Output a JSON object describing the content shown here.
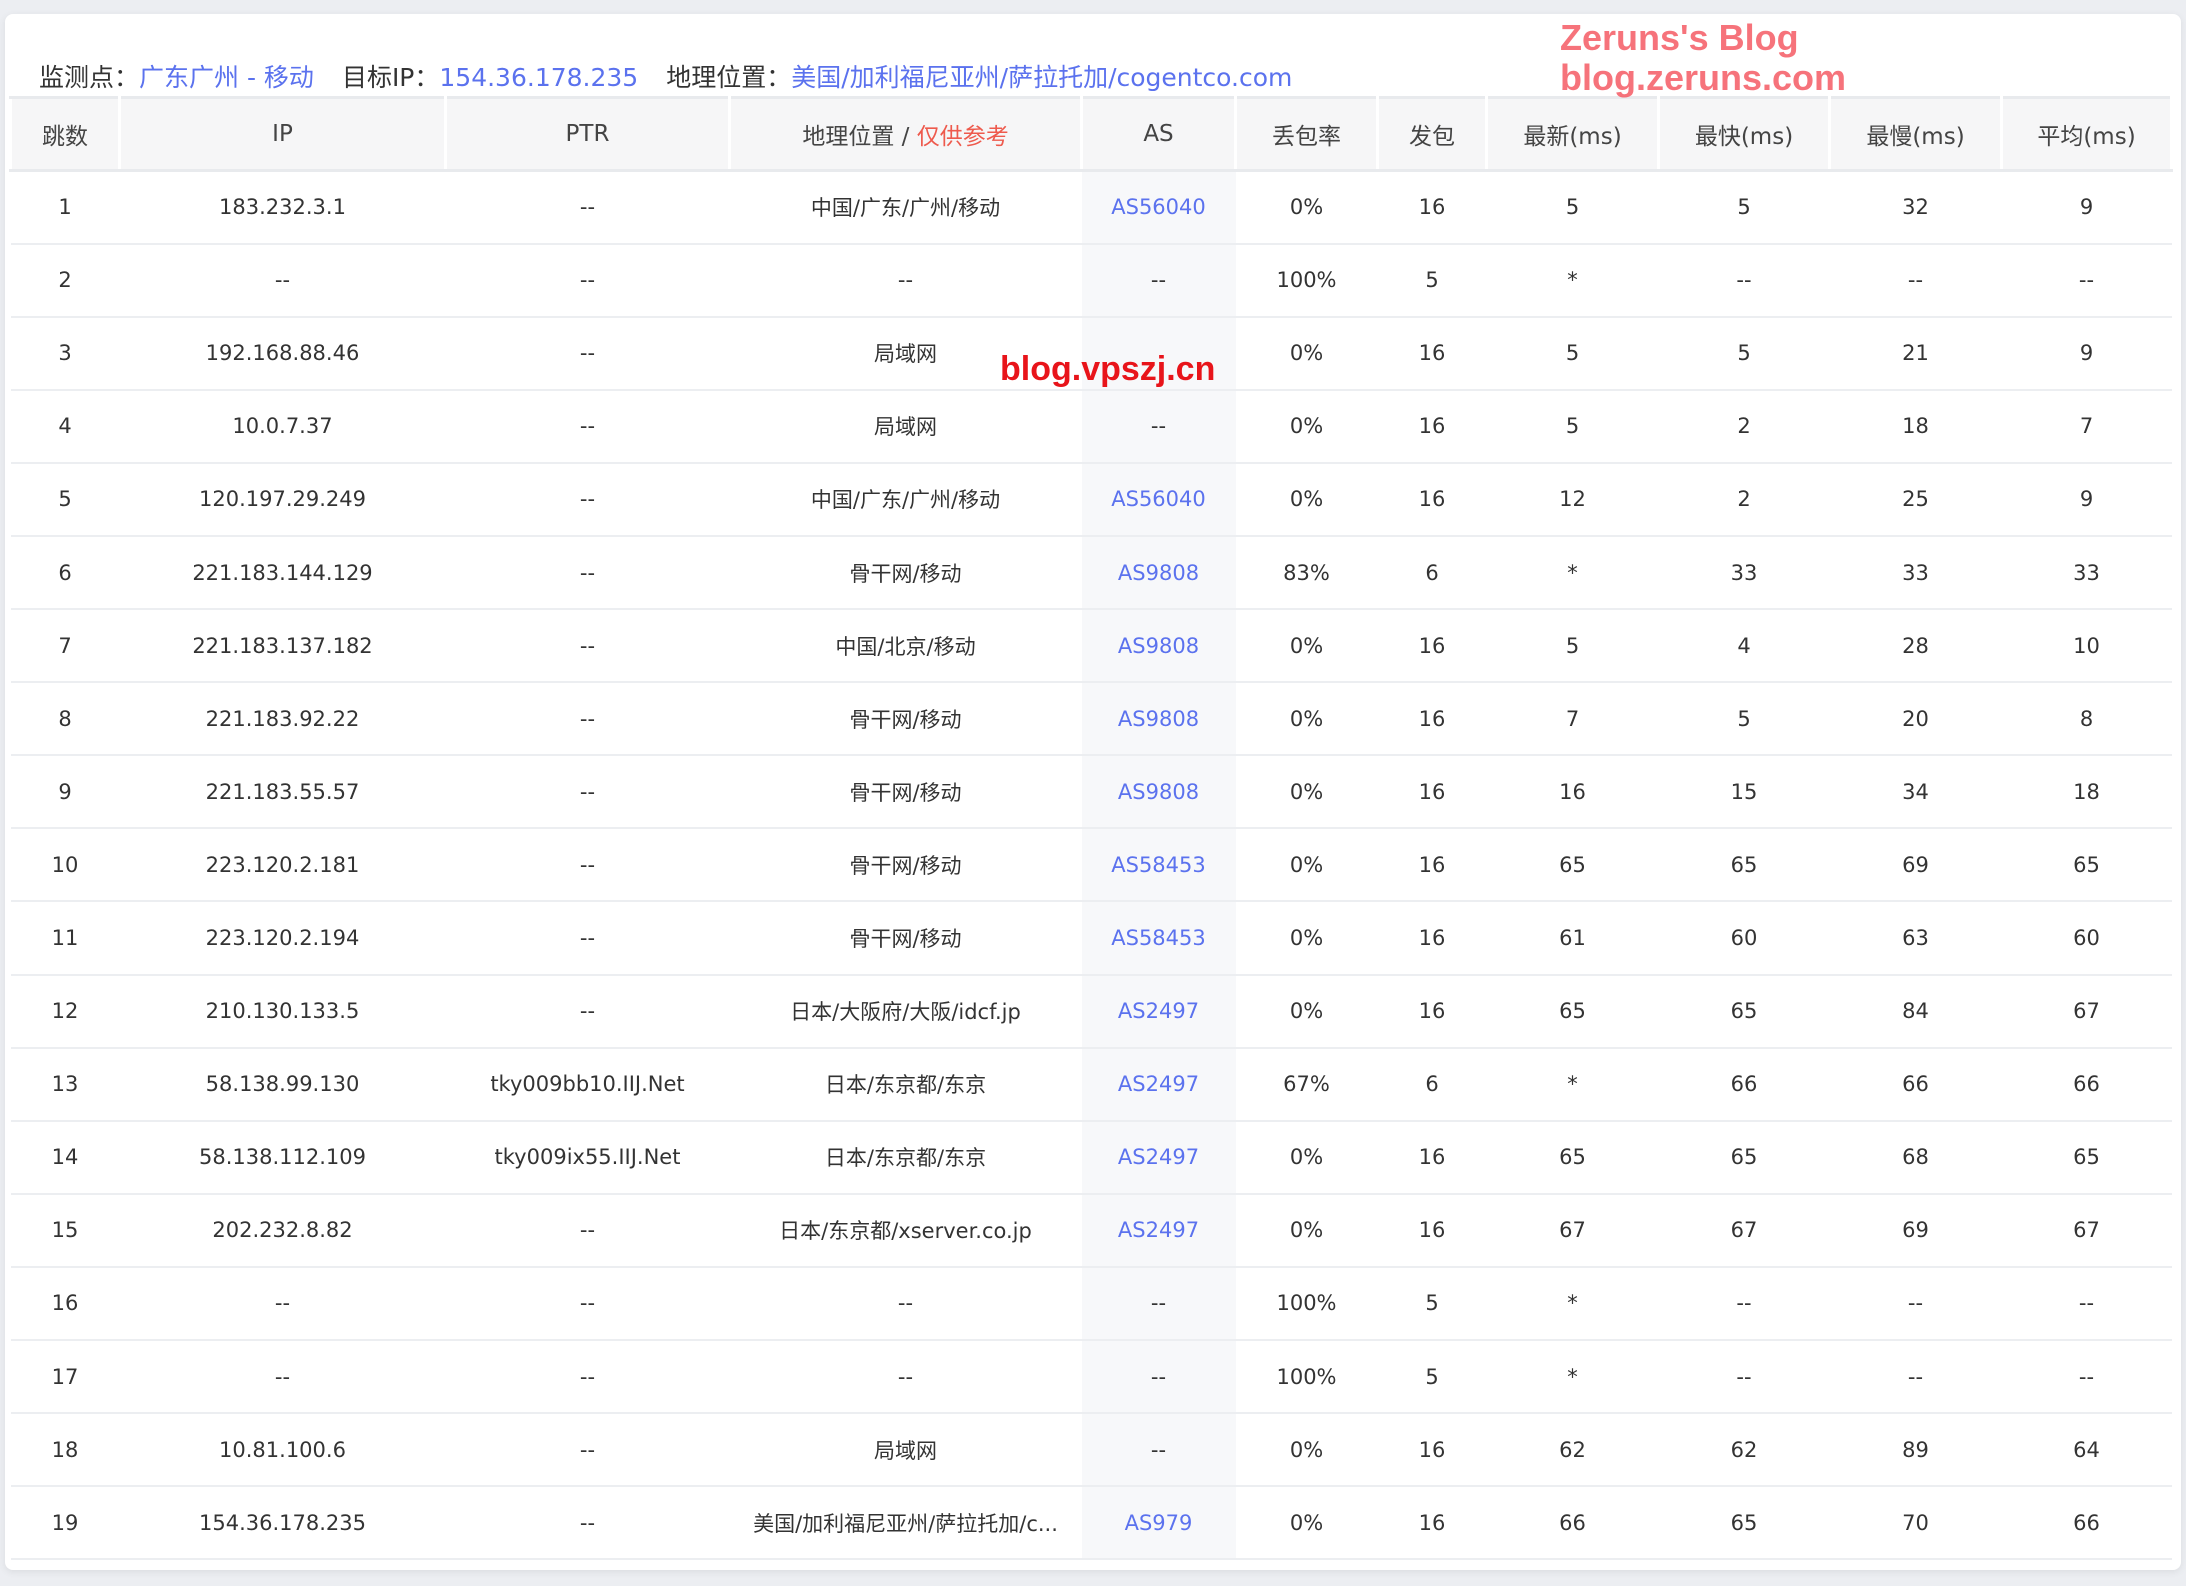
{
  "header": {
    "probe_label": "监测点：",
    "probe": "广东广州 - 移动",
    "target_label": "目标IP：",
    "target": "154.36.178.235",
    "geo_label": "地理位置：",
    "geo": "美国/加利福尼亚州/萨拉托加/cogentco.com"
  },
  "columns": {
    "hop": "跳数",
    "ip": "IP",
    "ptr": "PTR",
    "geo": "地理位置 / ",
    "geo_note": "仅供参考",
    "as": "AS",
    "loss": "丢包率",
    "sent": "发包",
    "last": "最新(ms)",
    "best": "最快(ms)",
    "worst": "最慢(ms)",
    "avg": "平均(ms)"
  },
  "rows": [
    [
      "1",
      "183.232.3.1",
      "--",
      "中国/广东/广州/移动",
      "AS56040",
      "0%",
      "16",
      "5",
      "5",
      "32",
      "9"
    ],
    [
      "2",
      "--",
      "--",
      "--",
      "--",
      "100%",
      "5",
      "*",
      "--",
      "--",
      "--"
    ],
    [
      "3",
      "192.168.88.46",
      "--",
      "局域网",
      "",
      "0%",
      "16",
      "5",
      "5",
      "21",
      "9"
    ],
    [
      "4",
      "10.0.7.37",
      "--",
      "局域网",
      "--",
      "0%",
      "16",
      "5",
      "2",
      "18",
      "7"
    ],
    [
      "5",
      "120.197.29.249",
      "--",
      "中国/广东/广州/移动",
      "AS56040",
      "0%",
      "16",
      "12",
      "2",
      "25",
      "9"
    ],
    [
      "6",
      "221.183.144.129",
      "--",
      "骨干网/移动",
      "AS9808",
      "83%",
      "6",
      "*",
      "33",
      "33",
      "33"
    ],
    [
      "7",
      "221.183.137.182",
      "--",
      "中国/北京/移动",
      "AS9808",
      "0%",
      "16",
      "5",
      "4",
      "28",
      "10"
    ],
    [
      "8",
      "221.183.92.22",
      "--",
      "骨干网/移动",
      "AS9808",
      "0%",
      "16",
      "7",
      "5",
      "20",
      "8"
    ],
    [
      "9",
      "221.183.55.57",
      "--",
      "骨干网/移动",
      "AS9808",
      "0%",
      "16",
      "16",
      "15",
      "34",
      "18"
    ],
    [
      "10",
      "223.120.2.181",
      "--",
      "骨干网/移动",
      "AS58453",
      "0%",
      "16",
      "65",
      "65",
      "69",
      "65"
    ],
    [
      "11",
      "223.120.2.194",
      "--",
      "骨干网/移动",
      "AS58453",
      "0%",
      "16",
      "61",
      "60",
      "63",
      "60"
    ],
    [
      "12",
      "210.130.133.5",
      "--",
      "日本/大阪府/大阪/idcf.jp",
      "AS2497",
      "0%",
      "16",
      "65",
      "65",
      "84",
      "67"
    ],
    [
      "13",
      "58.138.99.130",
      "tky009bb10.IIJ.Net",
      "日本/东京都/东京",
      "AS2497",
      "67%",
      "6",
      "*",
      "66",
      "66",
      "66"
    ],
    [
      "14",
      "58.138.112.109",
      "tky009ix55.IIJ.Net",
      "日本/东京都/东京",
      "AS2497",
      "0%",
      "16",
      "65",
      "65",
      "68",
      "65"
    ],
    [
      "15",
      "202.232.8.82",
      "--",
      "日本/东京都/xserver.co.jp",
      "AS2497",
      "0%",
      "16",
      "67",
      "67",
      "69",
      "67"
    ],
    [
      "16",
      "--",
      "--",
      "--",
      "--",
      "100%",
      "5",
      "*",
      "--",
      "--",
      "--"
    ],
    [
      "17",
      "--",
      "--",
      "--",
      "--",
      "100%",
      "5",
      "*",
      "--",
      "--",
      "--"
    ],
    [
      "18",
      "10.81.100.6",
      "--",
      "局域网",
      "--",
      "0%",
      "16",
      "62",
      "62",
      "89",
      "64"
    ],
    [
      "19",
      "154.36.178.235",
      "--",
      "美国/加利福尼亚州/萨拉托加/c...",
      "AS979",
      "0%",
      "16",
      "66",
      "65",
      "70",
      "66"
    ]
  ],
  "watermarks": {
    "center": "blog.vpszj.cn",
    "blog_name": "Zeruns's Blog",
    "blog_url": "blog.zeruns.com"
  }
}
